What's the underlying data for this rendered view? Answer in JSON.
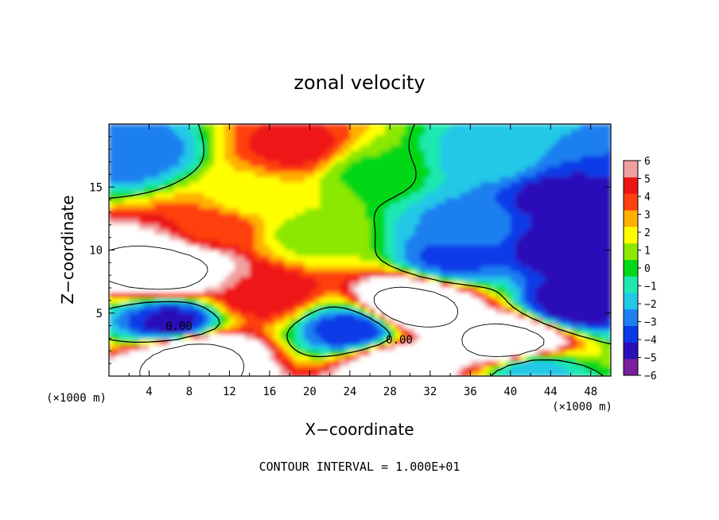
{
  "chart_data": {
    "type": "heatmap",
    "title": "zonal velocity",
    "xlabel": "X−coordinate",
    "ylabel": "Z−coordinate",
    "x_unit_left": "(×1000 m)",
    "x_unit_right": "(×1000 m)",
    "xlim": [
      0,
      50
    ],
    "ylim": [
      0,
      20
    ],
    "x_ticks": [
      "4",
      "8",
      "12",
      "16",
      "20",
      "24",
      "28",
      "32",
      "36",
      "40",
      "44",
      "48"
    ],
    "y_ticks": [
      "5",
      "10",
      "15"
    ],
    "colorbar": {
      "range": [
        -6,
        6
      ],
      "ticks": [
        "6",
        "5",
        "4",
        "3",
        "2",
        "1",
        "0",
        "−1",
        "−2",
        "−3",
        "−4",
        "−5",
        "−6"
      ]
    },
    "contour_labels": [
      "0.00",
      "0.00"
    ],
    "footer": "CONTOUR INTERVAL = 1.000E+01",
    "regions": [
      {
        "x": 5.5,
        "z": 8.5,
        "value": 12
      },
      {
        "x": 8,
        "z": 1.5,
        "value": 12
      },
      {
        "x": 30,
        "z": 5.5,
        "value": 12
      },
      {
        "x": 40,
        "z": 2.5,
        "value": 12
      },
      {
        "x": 28,
        "z": 0.6,
        "value": 8
      },
      {
        "x": 18.5,
        "z": 18,
        "value": 4.5
      },
      {
        "x": 10,
        "z": 11.5,
        "value": 4
      },
      {
        "x": 15,
        "z": 6.5,
        "value": 5
      },
      {
        "x": 14,
        "z": 14,
        "value": 2
      },
      {
        "x": 20,
        "z": 11,
        "value": 1
      },
      {
        "x": 26,
        "z": 16,
        "value": 0.3
      },
      {
        "x": 2,
        "z": 17.5,
        "value": -3
      },
      {
        "x": 6,
        "z": 4,
        "value": -4.5
      },
      {
        "x": 35,
        "z": 12,
        "value": -2.5
      },
      {
        "x": 38,
        "z": 17,
        "value": -2
      },
      {
        "x": 44,
        "z": 14,
        "value": -4.5
      },
      {
        "x": 45,
        "z": 10,
        "value": -5
      },
      {
        "x": 46,
        "z": 5.5,
        "value": -5
      },
      {
        "x": 34,
        "z": 9.2,
        "value": -3.5
      },
      {
        "x": 24,
        "z": 3.5,
        "value": -4
      },
      {
        "x": 42,
        "z": 0.3,
        "value": -2
      }
    ]
  },
  "colors": {
    "colormap": [
      "#7a1fa0",
      "#2a10b8",
      "#0a3ae8",
      "#1e7ff0",
      "#22c8e6",
      "#1ee8b0",
      "#00d818",
      "#8ce800",
      "#ffff00",
      "#ffb000",
      "#ff4010",
      "#ee1414",
      "#f0a0a0"
    ],
    "saturated": "#ffffff"
  }
}
